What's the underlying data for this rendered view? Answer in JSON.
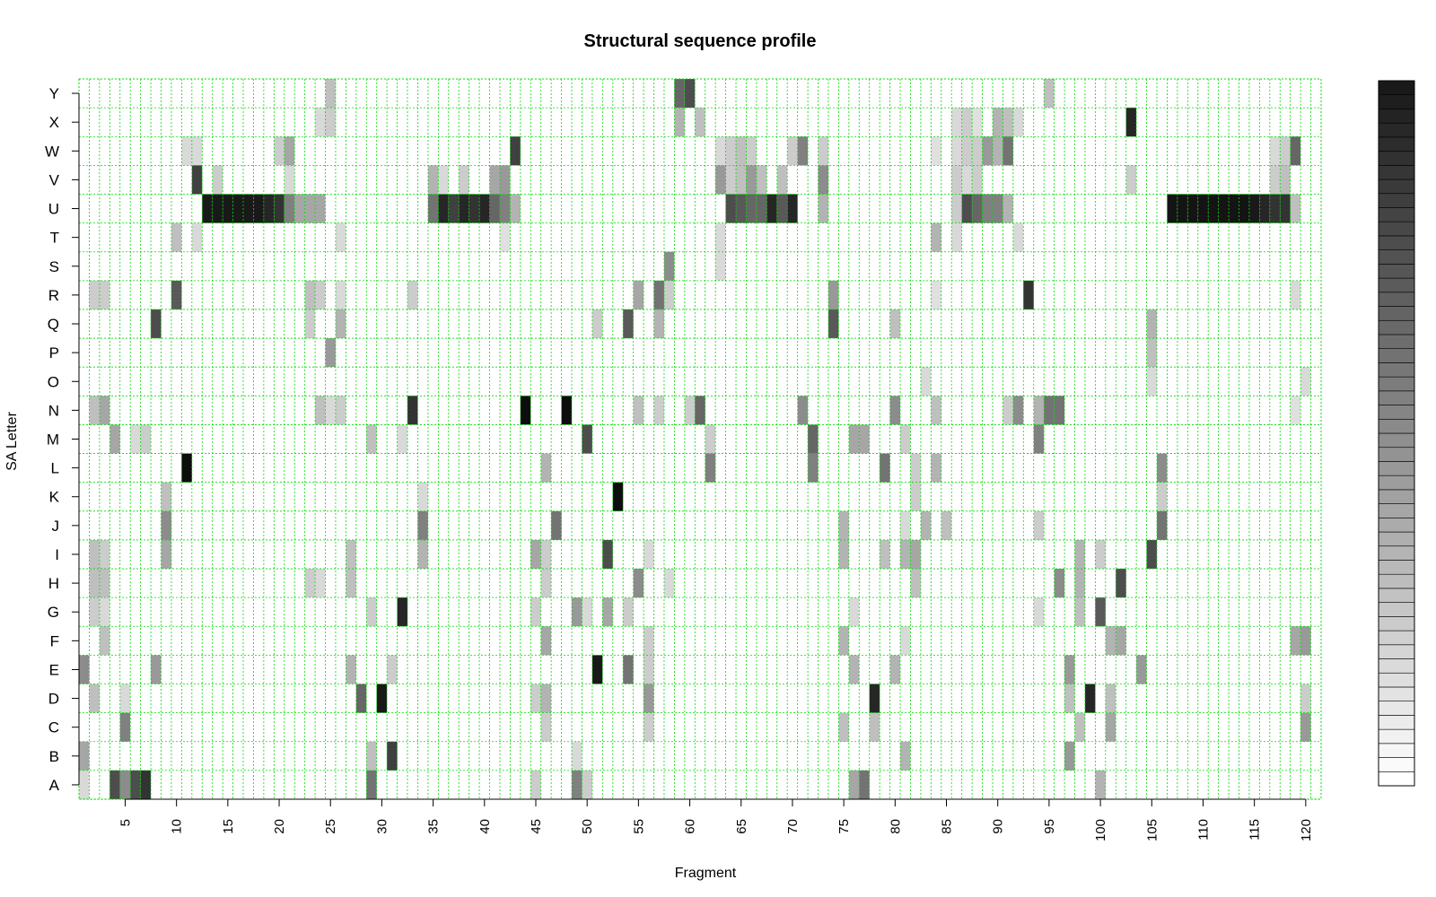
{
  "chart_data": {
    "type": "heatmap",
    "title": "Structural sequence profile",
    "xlabel": "Fragment",
    "ylabel": "SA Letter",
    "x_range": [
      1,
      121
    ],
    "x_tick_labels": [
      "5",
      "10",
      "15",
      "20",
      "25",
      "30",
      "35",
      "40",
      "45",
      "50",
      "55",
      "60",
      "65",
      "70",
      "75",
      "80",
      "85",
      "90",
      "95",
      "100",
      "105",
      "110",
      "115",
      "120"
    ],
    "y_categories": [
      "A",
      "B",
      "C",
      "D",
      "E",
      "F",
      "G",
      "H",
      "I",
      "J",
      "K",
      "L",
      "M",
      "N",
      "O",
      "P",
      "Q",
      "R",
      "S",
      "T",
      "U",
      "V",
      "W",
      "X",
      "Y"
    ],
    "grid": true,
    "colorbar": "right",
    "colors": {
      "low": "#ffffff",
      "high": "#000000",
      "grid": "#00dd00"
    },
    "cells": [
      [
        "U",
        [
          [
            13,
            0.9
          ],
          [
            14,
            0.9
          ],
          [
            15,
            0.9
          ],
          [
            16,
            0.9
          ],
          [
            17,
            0.9
          ],
          [
            18,
            0.9
          ],
          [
            19,
            0.85
          ],
          [
            20,
            0.8
          ],
          [
            21,
            0.5
          ],
          [
            22,
            0.35
          ],
          [
            23,
            0.35
          ],
          [
            24,
            0.35
          ],
          [
            35,
            0.55
          ],
          [
            36,
            0.85
          ],
          [
            37,
            0.75
          ],
          [
            38,
            0.85
          ],
          [
            39,
            0.8
          ],
          [
            40,
            0.85
          ],
          [
            41,
            0.6
          ],
          [
            42,
            0.5
          ],
          [
            43,
            0.3
          ],
          [
            64,
            0.7
          ],
          [
            65,
            0.65
          ],
          [
            66,
            0.6
          ],
          [
            67,
            0.6
          ],
          [
            68,
            0.85
          ],
          [
            69,
            0.65
          ],
          [
            70,
            0.85
          ],
          [
            73,
            0.3
          ],
          [
            86,
            0.2
          ],
          [
            87,
            0.7
          ],
          [
            88,
            0.6
          ],
          [
            89,
            0.5
          ],
          [
            90,
            0.5
          ],
          [
            91,
            0.3
          ],
          [
            107,
            0.92
          ],
          [
            108,
            0.92
          ],
          [
            109,
            0.92
          ],
          [
            110,
            0.92
          ],
          [
            111,
            0.92
          ],
          [
            112,
            0.92
          ],
          [
            113,
            0.92
          ],
          [
            114,
            0.92
          ],
          [
            115,
            0.9
          ],
          [
            116,
            0.85
          ],
          [
            117,
            0.8
          ],
          [
            118,
            0.8
          ],
          [
            119,
            0.25
          ]
        ]
      ],
      [
        "Y",
        [
          [
            25,
            0.25
          ],
          [
            59,
            0.6
          ],
          [
            60,
            0.7
          ],
          [
            95,
            0.25
          ]
        ]
      ],
      [
        "X",
        [
          [
            24,
            0.15
          ],
          [
            25,
            0.2
          ],
          [
            59,
            0.3
          ],
          [
            61,
            0.25
          ],
          [
            86,
            0.15
          ],
          [
            87,
            0.2
          ],
          [
            88,
            0.12
          ],
          [
            90,
            0.3
          ],
          [
            91,
            0.25
          ],
          [
            92,
            0.15
          ],
          [
            103,
            0.85
          ]
        ]
      ],
      [
        "W",
        [
          [
            11,
            0.15
          ],
          [
            12,
            0.15
          ],
          [
            20,
            0.2
          ],
          [
            21,
            0.35
          ],
          [
            43,
            0.75
          ],
          [
            63,
            0.15
          ],
          [
            64,
            0.2
          ],
          [
            65,
            0.25
          ],
          [
            66,
            0.2
          ],
          [
            70,
            0.2
          ],
          [
            71,
            0.5
          ],
          [
            73,
            0.2
          ],
          [
            84,
            0.12
          ],
          [
            86,
            0.15
          ],
          [
            87,
            0.2
          ],
          [
            88,
            0.2
          ],
          [
            89,
            0.4
          ],
          [
            90,
            0.3
          ],
          [
            91,
            0.55
          ],
          [
            117,
            0.15
          ],
          [
            118,
            0.2
          ],
          [
            119,
            0.6
          ]
        ]
      ],
      [
        "V",
        [
          [
            12,
            0.75
          ],
          [
            14,
            0.2
          ],
          [
            21,
            0.15
          ],
          [
            35,
            0.3
          ],
          [
            36,
            0.15
          ],
          [
            38,
            0.2
          ],
          [
            41,
            0.35
          ],
          [
            42,
            0.4
          ],
          [
            63,
            0.4
          ],
          [
            64,
            0.2
          ],
          [
            65,
            0.25
          ],
          [
            66,
            0.4
          ],
          [
            67,
            0.25
          ],
          [
            69,
            0.25
          ],
          [
            73,
            0.45
          ],
          [
            86,
            0.2
          ],
          [
            87,
            0.15
          ],
          [
            88,
            0.2
          ],
          [
            103,
            0.2
          ],
          [
            117,
            0.2
          ],
          [
            118,
            0.25
          ]
        ]
      ],
      [
        "T",
        [
          [
            10,
            0.25
          ],
          [
            12,
            0.15
          ],
          [
            26,
            0.15
          ],
          [
            42,
            0.12
          ],
          [
            63,
            0.15
          ],
          [
            84,
            0.3
          ],
          [
            86,
            0.15
          ],
          [
            92,
            0.15
          ]
        ]
      ],
      [
        "S",
        [
          [
            58,
            0.45
          ],
          [
            63,
            0.15
          ]
        ]
      ],
      [
        "R",
        [
          [
            2,
            0.2
          ],
          [
            3,
            0.2
          ],
          [
            10,
            0.65
          ],
          [
            23,
            0.25
          ],
          [
            24,
            0.2
          ],
          [
            26,
            0.15
          ],
          [
            33,
            0.2
          ],
          [
            55,
            0.35
          ],
          [
            57,
            0.55
          ],
          [
            58,
            0.2
          ],
          [
            74,
            0.4
          ],
          [
            84,
            0.12
          ],
          [
            93,
            0.8
          ],
          [
            119,
            0.15
          ]
        ]
      ],
      [
        "Q",
        [
          [
            8,
            0.7
          ],
          [
            23,
            0.2
          ],
          [
            26,
            0.3
          ],
          [
            51,
            0.2
          ],
          [
            54,
            0.65
          ],
          [
            57,
            0.3
          ],
          [
            74,
            0.65
          ],
          [
            80,
            0.25
          ],
          [
            105,
            0.3
          ]
        ]
      ],
      [
        "P",
        [
          [
            25,
            0.4
          ],
          [
            105,
            0.25
          ]
        ]
      ],
      [
        "O",
        [
          [
            83,
            0.15
          ],
          [
            105,
            0.15
          ],
          [
            120,
            0.15
          ]
        ]
      ],
      [
        "N",
        [
          [
            2,
            0.25
          ],
          [
            3,
            0.35
          ],
          [
            24,
            0.25
          ],
          [
            25,
            0.15
          ],
          [
            26,
            0.2
          ],
          [
            33,
            0.8
          ],
          [
            44,
            0.95
          ],
          [
            48,
            0.95
          ],
          [
            55,
            0.25
          ],
          [
            57,
            0.2
          ],
          [
            60,
            0.2
          ],
          [
            61,
            0.6
          ],
          [
            71,
            0.45
          ],
          [
            80,
            0.45
          ],
          [
            84,
            0.25
          ],
          [
            91,
            0.2
          ],
          [
            92,
            0.45
          ],
          [
            94,
            0.3
          ],
          [
            95,
            0.55
          ],
          [
            96,
            0.55
          ],
          [
            119,
            0.12
          ]
        ]
      ],
      [
        "M",
        [
          [
            4,
            0.35
          ],
          [
            6,
            0.15
          ],
          [
            7,
            0.2
          ],
          [
            29,
            0.25
          ],
          [
            32,
            0.15
          ],
          [
            50,
            0.7
          ],
          [
            62,
            0.2
          ],
          [
            72,
            0.6
          ],
          [
            76,
            0.35
          ],
          [
            77,
            0.35
          ],
          [
            81,
            0.2
          ],
          [
            94,
            0.5
          ]
        ]
      ],
      [
        "L",
        [
          [
            11,
            0.95
          ],
          [
            46,
            0.3
          ],
          [
            62,
            0.5
          ],
          [
            72,
            0.5
          ],
          [
            79,
            0.55
          ],
          [
            82,
            0.2
          ],
          [
            84,
            0.3
          ],
          [
            106,
            0.45
          ]
        ]
      ],
      [
        "K",
        [
          [
            9,
            0.25
          ],
          [
            34,
            0.15
          ],
          [
            53,
            0.95
          ],
          [
            82,
            0.2
          ],
          [
            106,
            0.2
          ]
        ]
      ],
      [
        "J",
        [
          [
            9,
            0.45
          ],
          [
            34,
            0.5
          ],
          [
            47,
            0.55
          ],
          [
            75,
            0.3
          ],
          [
            81,
            0.15
          ],
          [
            83,
            0.3
          ],
          [
            85,
            0.25
          ],
          [
            94,
            0.2
          ],
          [
            106,
            0.55
          ]
        ]
      ],
      [
        "I",
        [
          [
            2,
            0.25
          ],
          [
            3,
            0.2
          ],
          [
            9,
            0.35
          ],
          [
            27,
            0.25
          ],
          [
            34,
            0.3
          ],
          [
            45,
            0.35
          ],
          [
            46,
            0.2
          ],
          [
            52,
            0.7
          ],
          [
            56,
            0.15
          ],
          [
            75,
            0.3
          ],
          [
            79,
            0.25
          ],
          [
            81,
            0.3
          ],
          [
            82,
            0.35
          ],
          [
            98,
            0.3
          ],
          [
            100,
            0.2
          ],
          [
            105,
            0.7
          ]
        ]
      ],
      [
        "H",
        [
          [
            2,
            0.25
          ],
          [
            3,
            0.25
          ],
          [
            23,
            0.2
          ],
          [
            24,
            0.15
          ],
          [
            27,
            0.25
          ],
          [
            46,
            0.2
          ],
          [
            55,
            0.45
          ],
          [
            58,
            0.15
          ],
          [
            82,
            0.25
          ],
          [
            96,
            0.45
          ],
          [
            98,
            0.3
          ],
          [
            102,
            0.7
          ]
        ]
      ],
      [
        "G",
        [
          [
            2,
            0.2
          ],
          [
            3,
            0.15
          ],
          [
            29,
            0.2
          ],
          [
            32,
            0.85
          ],
          [
            45,
            0.2
          ],
          [
            49,
            0.4
          ],
          [
            50,
            0.15
          ],
          [
            52,
            0.35
          ],
          [
            54,
            0.2
          ],
          [
            76,
            0.15
          ],
          [
            94,
            0.15
          ],
          [
            98,
            0.25
          ],
          [
            100,
            0.65
          ]
        ]
      ],
      [
        "F",
        [
          [
            3,
            0.25
          ],
          [
            46,
            0.35
          ],
          [
            56,
            0.2
          ],
          [
            75,
            0.3
          ],
          [
            81,
            0.15
          ],
          [
            101,
            0.3
          ],
          [
            102,
            0.35
          ],
          [
            119,
            0.35
          ],
          [
            120,
            0.4
          ]
        ]
      ],
      [
        "E",
        [
          [
            1,
            0.45
          ],
          [
            8,
            0.4
          ],
          [
            27,
            0.3
          ],
          [
            31,
            0.2
          ],
          [
            51,
            0.9
          ],
          [
            54,
            0.55
          ],
          [
            56,
            0.2
          ],
          [
            76,
            0.3
          ],
          [
            80,
            0.3
          ],
          [
            97,
            0.4
          ],
          [
            104,
            0.4
          ]
        ]
      ],
      [
        "D",
        [
          [
            2,
            0.25
          ],
          [
            5,
            0.15
          ],
          [
            28,
            0.6
          ],
          [
            30,
            0.9
          ],
          [
            45,
            0.2
          ],
          [
            46,
            0.3
          ],
          [
            56,
            0.4
          ],
          [
            78,
            0.85
          ],
          [
            97,
            0.25
          ],
          [
            99,
            0.85
          ],
          [
            101,
            0.25
          ],
          [
            120,
            0.2
          ]
        ]
      ],
      [
        "C",
        [
          [
            5,
            0.5
          ],
          [
            46,
            0.2
          ],
          [
            56,
            0.2
          ],
          [
            75,
            0.25
          ],
          [
            78,
            0.25
          ],
          [
            98,
            0.25
          ],
          [
            101,
            0.35
          ],
          [
            120,
            0.4
          ]
        ]
      ],
      [
        "B",
        [
          [
            1,
            0.35
          ],
          [
            29,
            0.25
          ],
          [
            31,
            0.75
          ],
          [
            49,
            0.15
          ],
          [
            81,
            0.3
          ],
          [
            97,
            0.4
          ]
        ]
      ],
      [
        "A",
        [
          [
            1,
            0.15
          ],
          [
            4,
            0.7
          ],
          [
            5,
            0.45
          ],
          [
            6,
            0.7
          ],
          [
            7,
            0.8
          ],
          [
            29,
            0.55
          ],
          [
            45,
            0.2
          ],
          [
            49,
            0.5
          ],
          [
            50,
            0.2
          ],
          [
            76,
            0.35
          ],
          [
            77,
            0.55
          ],
          [
            100,
            0.3
          ]
        ]
      ]
    ]
  }
}
